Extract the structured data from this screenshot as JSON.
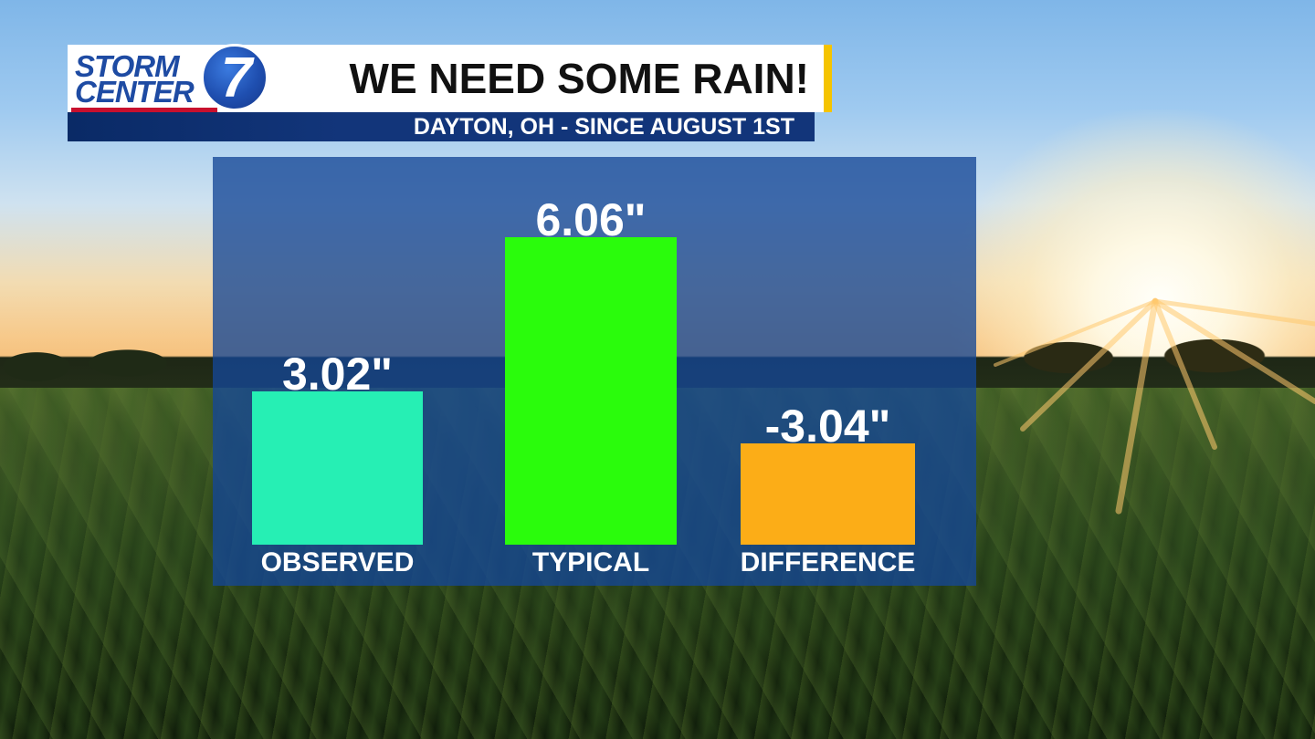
{
  "header": {
    "title": "WE NEED SOME RAIN!",
    "subtitle": "DAYTON, OH - SINCE AUGUST 1ST",
    "logo": {
      "line1": "STORM",
      "line2": "CENTER",
      "number": "7"
    },
    "accent_color": "#f5c400",
    "subtitle_bg": "#12357a"
  },
  "chart_data": {
    "type": "bar",
    "title": "WE NEED SOME RAIN!",
    "subtitle": "DAYTON, OH - SINCE AUGUST 1ST",
    "categories": [
      "OBSERVED",
      "TYPICAL",
      "DIFFERENCE"
    ],
    "values": [
      3.02,
      6.06,
      -3.04
    ],
    "value_labels": [
      "3.02\"",
      "6.06\"",
      "-3.04\""
    ],
    "colors": [
      "#26efb4",
      "#2afc0c",
      "#fcad17"
    ],
    "bar_heights_rel": [
      3.02,
      6.06,
      2.0
    ],
    "unit": "inches",
    "grid": false,
    "legend": "none",
    "ylim": [
      0,
      6.06
    ]
  }
}
